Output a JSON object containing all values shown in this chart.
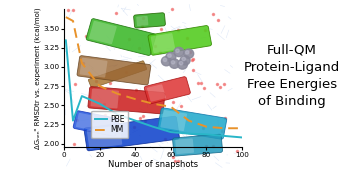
{
  "pbe_x": [
    1,
    5,
    10,
    20,
    30,
    40,
    50,
    60,
    70,
    80,
    90,
    100
  ],
  "pbe_y": [
    3.35,
    2.3,
    2.62,
    2.52,
    2.38,
    2.3,
    2.22,
    2.15,
    2.13,
    2.12,
    2.1,
    2.08
  ],
  "mm_x": [
    1,
    5,
    10,
    20,
    30,
    40,
    50,
    60,
    70,
    80,
    90,
    100
  ],
  "mm_y": [
    3.65,
    3.6,
    3.05,
    2.75,
    2.65,
    2.58,
    2.52,
    2.48,
    2.3,
    2.22,
    2.2,
    2.2
  ],
  "pbe_color": "#29b6c8",
  "mm_color": "#e8922a",
  "xlabel": "Number of snapshots",
  "ylabel": "ΔGₙₑₙᵒ RMSDtr vs. experiment (kcal/mol)",
  "xlim": [
    0,
    100
  ],
  "ylim": [
    1.95,
    3.75
  ],
  "yticks": [
    2.0,
    2.25,
    2.5,
    2.75,
    3.0,
    3.25,
    3.5
  ],
  "xticks": [
    0,
    20,
    40,
    60,
    80,
    100
  ],
  "legend_pbe": "PBE",
  "legend_mm": "MM",
  "title": "Full-QM\nProtein-Ligand\nFree Energies\nof Binding",
  "title_fontsize": 9.5,
  "bg_color": "#ffffff"
}
